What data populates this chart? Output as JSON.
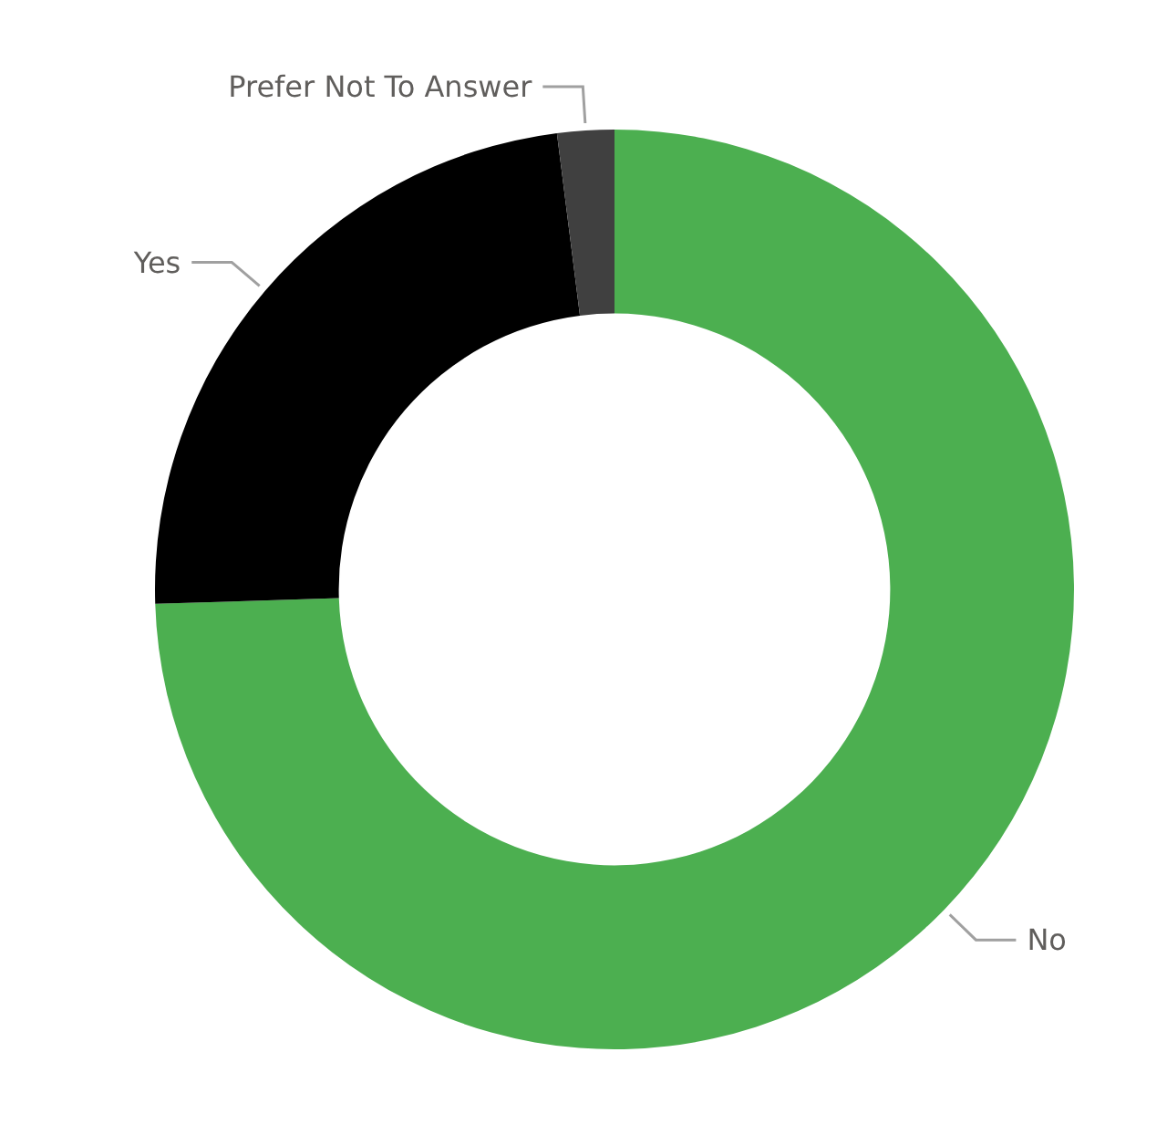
{
  "chart_data": {
    "type": "donut",
    "categories": [
      "No",
      "Yes",
      "Prefer Not To Answer"
    ],
    "values": [
      74.5,
      23.5,
      2
    ],
    "colors": [
      "#4caf50",
      "#000000",
      "#404040"
    ],
    "legend": false
  }
}
